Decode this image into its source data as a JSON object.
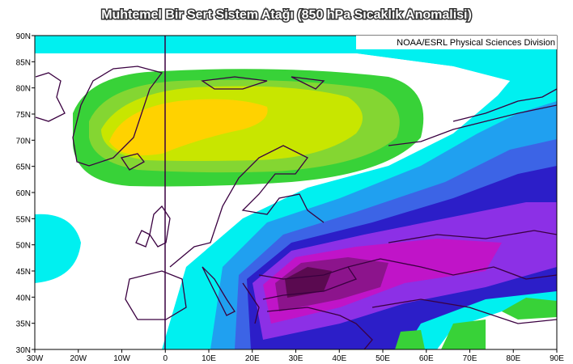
{
  "title": "Muhtemel Bir Sert Sistem Atağı (850 hPa Sıcaklık Anomalisi)",
  "attribution": "NOAA/ESRL Physical Sciences Division",
  "lat_labels": [
    "30N",
    "35N",
    "40N",
    "45N",
    "50N",
    "55N",
    "60N",
    "65N",
    "70N",
    "75N",
    "80N",
    "85N",
    "90N"
  ],
  "lon_labels": [
    "30W",
    "20W",
    "10W",
    "0",
    "10E",
    "20E",
    "30E",
    "40E",
    "50E",
    "60E",
    "70E",
    "80E",
    "90E"
  ]
}
